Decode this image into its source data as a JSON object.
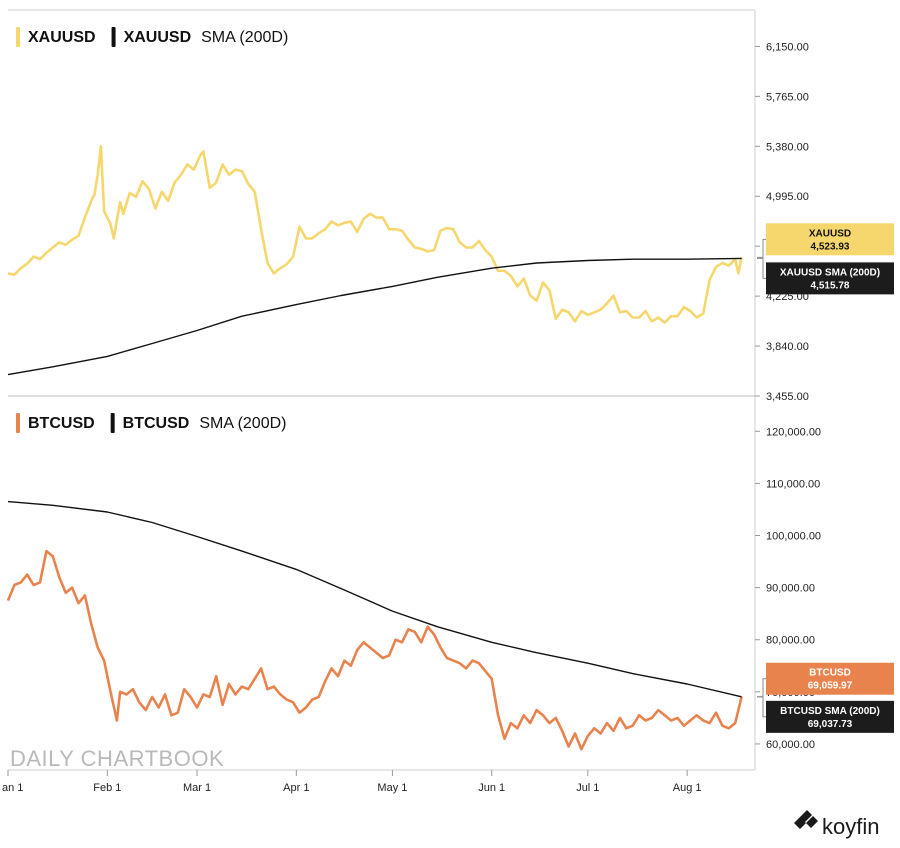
{
  "watermark": "DAILY CHARTBOOK",
  "brand": "koyfin",
  "colors": {
    "gold": "#f5d76e",
    "btc": "#e8834e",
    "sma": "#111111",
    "badge_dark": "#1c1c1c"
  },
  "chart_data": [
    {
      "type": "line",
      "title": "",
      "x_range": [
        "2026-01-01",
        "2026-08-20"
      ],
      "x_ticks": [
        {
          "date": "2026-01-01",
          "label": "an 1"
        },
        {
          "date": "2026-02-01",
          "label": "Feb 1"
        },
        {
          "date": "2026-03-01",
          "label": "Mar 1"
        },
        {
          "date": "2026-04-01",
          "label": "Apr 1"
        },
        {
          "date": "2026-05-01",
          "label": "May 1"
        },
        {
          "date": "2026-06-01",
          "label": "Jun 1"
        },
        {
          "date": "2026-07-01",
          "label": "Jul 1"
        },
        {
          "date": "2026-08-01",
          "label": "Aug 1"
        }
      ],
      "ylim": [
        3455,
        6400
      ],
      "y_ticks": [
        "6,150.00",
        "5,765.00",
        "5,380.00",
        "4,995.00",
        "4,610.00",
        "4,225.00",
        "3,840.00",
        "3,455.00"
      ],
      "legend": [
        {
          "name": "XAUUSD",
          "color": "#f5d76e",
          "bold": true
        },
        {
          "name": "XAUUSD",
          "suffix": "SMA (200D)",
          "color": "#111111",
          "bold": true
        }
      ],
      "last_value_labels": [
        {
          "name": "XAUUSD",
          "value": "4,523.93",
          "bg": "#f5d76e",
          "fg": "#111111"
        },
        {
          "name": "XAUUSD SMA (200D)",
          "value": "4,515.78",
          "bg": "#1c1c1c",
          "fg": "#ffffff"
        }
      ],
      "series": [
        {
          "name": "XAUUSD",
          "color": "#f5d76e",
          "x": [
            "2026-01-01",
            "2026-01-03",
            "2026-01-05",
            "2026-01-07",
            "2026-01-09",
            "2026-01-11",
            "2026-01-13",
            "2026-01-15",
            "2026-01-17",
            "2026-01-19",
            "2026-01-21",
            "2026-01-23",
            "2026-01-25",
            "2026-01-27",
            "2026-01-28",
            "2026-01-29",
            "2026-01-30",
            "2026-01-31",
            "2026-02-02",
            "2026-02-03",
            "2026-02-05",
            "2026-02-06",
            "2026-02-08",
            "2026-02-10",
            "2026-02-12",
            "2026-02-14",
            "2026-02-16",
            "2026-02-18",
            "2026-02-20",
            "2026-02-22",
            "2026-02-24",
            "2026-02-26",
            "2026-02-28",
            "2026-03-02",
            "2026-03-03",
            "2026-03-05",
            "2026-03-07",
            "2026-03-09",
            "2026-03-11",
            "2026-03-13",
            "2026-03-15",
            "2026-03-17",
            "2026-03-19",
            "2026-03-21",
            "2026-03-23",
            "2026-03-25",
            "2026-03-27",
            "2026-03-29",
            "2026-03-31",
            "2026-04-02",
            "2026-04-04",
            "2026-04-06",
            "2026-04-08",
            "2026-04-10",
            "2026-04-12",
            "2026-04-14",
            "2026-04-16",
            "2026-04-18",
            "2026-04-20",
            "2026-04-22",
            "2026-04-24",
            "2026-04-26",
            "2026-04-28",
            "2026-04-30",
            "2026-05-02",
            "2026-05-04",
            "2026-05-06",
            "2026-05-08",
            "2026-05-10",
            "2026-05-12",
            "2026-05-14",
            "2026-05-16",
            "2026-05-18",
            "2026-05-20",
            "2026-05-22",
            "2026-05-24",
            "2026-05-26",
            "2026-05-28",
            "2026-05-30",
            "2026-06-01",
            "2026-06-03",
            "2026-06-05",
            "2026-06-07",
            "2026-06-09",
            "2026-06-11",
            "2026-06-13",
            "2026-06-15",
            "2026-06-17",
            "2026-06-19",
            "2026-06-21",
            "2026-06-23",
            "2026-06-25",
            "2026-06-27",
            "2026-06-29",
            "2026-07-01",
            "2026-07-03",
            "2026-07-05",
            "2026-07-07",
            "2026-07-09",
            "2026-07-11",
            "2026-07-13",
            "2026-07-15",
            "2026-07-17",
            "2026-07-19",
            "2026-07-21",
            "2026-07-23",
            "2026-07-25",
            "2026-07-27",
            "2026-07-29",
            "2026-07-31",
            "2026-08-02",
            "2026-08-04",
            "2026-08-06",
            "2026-08-08",
            "2026-08-10",
            "2026-08-12",
            "2026-08-14",
            "2026-08-16",
            "2026-08-17",
            "2026-08-18"
          ],
          "values": [
            4400,
            4390,
            4440,
            4475,
            4530,
            4510,
            4560,
            4600,
            4640,
            4620,
            4660,
            4690,
            4830,
            4960,
            5010,
            5160,
            5380,
            4880,
            4780,
            4670,
            4950,
            4860,
            5020,
            4990,
            5110,
            5050,
            4900,
            5030,
            4960,
            5100,
            5160,
            5240,
            5200,
            5310,
            5340,
            5060,
            5100,
            5240,
            5160,
            5200,
            5190,
            5090,
            5030,
            4740,
            4480,
            4400,
            4440,
            4470,
            4530,
            4760,
            4670,
            4670,
            4710,
            4740,
            4800,
            4770,
            4790,
            4800,
            4720,
            4820,
            4860,
            4830,
            4830,
            4740,
            4740,
            4730,
            4660,
            4600,
            4590,
            4570,
            4580,
            4730,
            4750,
            4740,
            4640,
            4600,
            4600,
            4650,
            4580,
            4530,
            4420,
            4420,
            4380,
            4300,
            4360,
            4230,
            4190,
            4330,
            4270,
            4050,
            4120,
            4100,
            4030,
            4110,
            4080,
            4100,
            4120,
            4170,
            4230,
            4100,
            4110,
            4060,
            4060,
            4110,
            4030,
            4060,
            4020,
            4070,
            4070,
            4140,
            4110,
            4060,
            4090,
            4350,
            4450,
            4480,
            4460,
            4510,
            4400,
            4524
          ]
        },
        {
          "name": "XAUUSD SMA (200D)",
          "color": "#111111",
          "x": [
            "2026-01-01",
            "2026-01-15",
            "2026-02-01",
            "2026-02-15",
            "2026-03-01",
            "2026-03-15",
            "2026-04-01",
            "2026-04-15",
            "2026-05-01",
            "2026-05-15",
            "2026-06-01",
            "2026-06-15",
            "2026-07-01",
            "2026-07-15",
            "2026-08-01",
            "2026-08-18"
          ],
          "values": [
            3620,
            3680,
            3760,
            3860,
            3960,
            4070,
            4160,
            4230,
            4300,
            4370,
            4440,
            4480,
            4500,
            4510,
            4510,
            4516
          ]
        }
      ]
    },
    {
      "type": "line",
      "title": "",
      "x_range": [
        "2026-01-01",
        "2026-08-20"
      ],
      "ylim": [
        55000,
        126000
      ],
      "y_ticks": [
        "120,000.00",
        "110,000.00",
        "100,000.00",
        "90,000.00",
        "80,000.00",
        "70,000.00",
        "60,000.00"
      ],
      "legend": [
        {
          "name": "BTCUSD",
          "color": "#e8834e",
          "bold": true
        },
        {
          "name": "BTCUSD",
          "suffix": "SMA (200D)",
          "color": "#111111",
          "bold": true
        }
      ],
      "last_value_labels": [
        {
          "name": "BTCUSD",
          "value": "69,059.97",
          "bg": "#e8834e",
          "fg": "#ffffff"
        },
        {
          "name": "BTCUSD SMA (200D)",
          "value": "69,037.73",
          "bg": "#1c1c1c",
          "fg": "#ffffff"
        }
      ],
      "series": [
        {
          "name": "BTCUSD",
          "color": "#e8834e",
          "x": [
            "2026-01-01",
            "2026-01-03",
            "2026-01-05",
            "2026-01-07",
            "2026-01-09",
            "2026-01-11",
            "2026-01-13",
            "2026-01-15",
            "2026-01-17",
            "2026-01-19",
            "2026-01-21",
            "2026-01-23",
            "2026-01-25",
            "2026-01-27",
            "2026-01-29",
            "2026-01-31",
            "2026-02-02",
            "2026-02-04",
            "2026-02-05",
            "2026-02-07",
            "2026-02-09",
            "2026-02-11",
            "2026-02-13",
            "2026-02-15",
            "2026-02-17",
            "2026-02-19",
            "2026-02-21",
            "2026-02-23",
            "2026-02-25",
            "2026-02-27",
            "2026-03-01",
            "2026-03-03",
            "2026-03-05",
            "2026-03-07",
            "2026-03-09",
            "2026-03-11",
            "2026-03-13",
            "2026-03-15",
            "2026-03-17",
            "2026-03-19",
            "2026-03-21",
            "2026-03-23",
            "2026-03-25",
            "2026-03-27",
            "2026-03-29",
            "2026-03-31",
            "2026-04-02",
            "2026-04-04",
            "2026-04-06",
            "2026-04-08",
            "2026-04-10",
            "2026-04-12",
            "2026-04-14",
            "2026-04-16",
            "2026-04-18",
            "2026-04-20",
            "2026-04-22",
            "2026-04-24",
            "2026-04-26",
            "2026-04-28",
            "2026-04-30",
            "2026-05-02",
            "2026-05-04",
            "2026-05-06",
            "2026-05-08",
            "2026-05-10",
            "2026-05-12",
            "2026-05-14",
            "2026-05-16",
            "2026-05-18",
            "2026-05-20",
            "2026-05-22",
            "2026-05-24",
            "2026-05-26",
            "2026-05-28",
            "2026-05-30",
            "2026-06-01",
            "2026-06-03",
            "2026-06-05",
            "2026-06-07",
            "2026-06-09",
            "2026-06-11",
            "2026-06-13",
            "2026-06-15",
            "2026-06-17",
            "2026-06-19",
            "2026-06-21",
            "2026-06-23",
            "2026-06-25",
            "2026-06-27",
            "2026-06-29",
            "2026-07-01",
            "2026-07-03",
            "2026-07-05",
            "2026-07-07",
            "2026-07-09",
            "2026-07-11",
            "2026-07-13",
            "2026-07-15",
            "2026-07-17",
            "2026-07-19",
            "2026-07-21",
            "2026-07-23",
            "2026-07-25",
            "2026-07-27",
            "2026-07-29",
            "2026-07-31",
            "2026-08-02",
            "2026-08-04",
            "2026-08-06",
            "2026-08-08",
            "2026-08-10",
            "2026-08-12",
            "2026-08-14",
            "2026-08-16",
            "2026-08-17",
            "2026-08-18"
          ],
          "values": [
            87500,
            90500,
            91000,
            92500,
            90500,
            91000,
            97000,
            96000,
            92000,
            89000,
            90000,
            87000,
            88500,
            83000,
            78500,
            76000,
            70000,
            64500,
            70000,
            69500,
            70500,
            68000,
            66500,
            69000,
            67000,
            69500,
            65500,
            66000,
            70500,
            69000,
            67000,
            69500,
            69000,
            73000,
            67500,
            71500,
            69500,
            71000,
            70500,
            72500,
            74500,
            70500,
            71000,
            69500,
            68500,
            68000,
            66000,
            67000,
            68500,
            69000,
            72000,
            74500,
            73000,
            76000,
            75000,
            78000,
            79500,
            78500,
            77500,
            76500,
            77000,
            80000,
            79500,
            82000,
            81500,
            79500,
            82500,
            81000,
            78500,
            76500,
            76000,
            75500,
            74500,
            76000,
            75500,
            74000,
            72500,
            65500,
            61000,
            64000,
            63000,
            65500,
            64000,
            66500,
            65500,
            64000,
            65000,
            62500,
            59500,
            62000,
            59000,
            61500,
            63000,
            62000,
            64000,
            62500,
            65000,
            63000,
            63500,
            65500,
            64500,
            65000,
            66500,
            65500,
            64500,
            65000,
            63500,
            64500,
            65500,
            64500,
            64000,
            66000,
            63500,
            63000,
            64000,
            66500,
            69060
          ]
        },
        {
          "name": "BTCUSD SMA (200D)",
          "color": "#111111",
          "x": [
            "2026-01-01",
            "2026-01-15",
            "2026-02-01",
            "2026-02-15",
            "2026-03-01",
            "2026-03-15",
            "2026-04-01",
            "2026-04-15",
            "2026-05-01",
            "2026-05-15",
            "2026-06-01",
            "2026-06-15",
            "2026-07-01",
            "2026-07-15",
            "2026-08-01",
            "2026-08-18"
          ],
          "values": [
            106500,
            105800,
            104500,
            102500,
            99800,
            97000,
            93500,
            89800,
            85500,
            82500,
            79500,
            77500,
            75500,
            73500,
            71500,
            69038
          ]
        }
      ]
    }
  ]
}
